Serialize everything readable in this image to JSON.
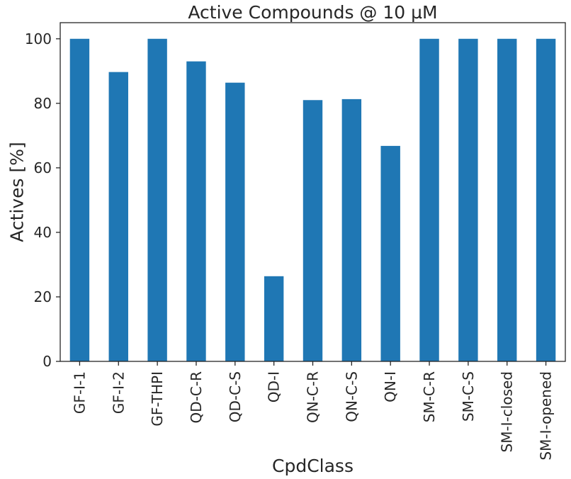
{
  "chart_data": {
    "type": "bar",
    "title": "Active Compounds @ 10 µM",
    "xlabel": "CpdClass",
    "ylabel": "Actives [%]",
    "categories": [
      "GF-I-1",
      "GF-I-2",
      "GF-THPI",
      "QD-C-R",
      "QD-C-S",
      "QD-I",
      "QN-C-R",
      "QN-C-S",
      "QN-I",
      "SM-C-R",
      "SM-C-S",
      "SM-I-closed",
      "SM-I-opened"
    ],
    "values": [
      100,
      89.7,
      100,
      93.0,
      86.4,
      26.4,
      81.0,
      81.3,
      66.8,
      100,
      100,
      100,
      100
    ],
    "ylim": [
      0,
      105
    ],
    "yticks": [
      0,
      20,
      40,
      60,
      80,
      100
    ],
    "color": "#1f77b4",
    "grid": false,
    "legend": "none"
  }
}
